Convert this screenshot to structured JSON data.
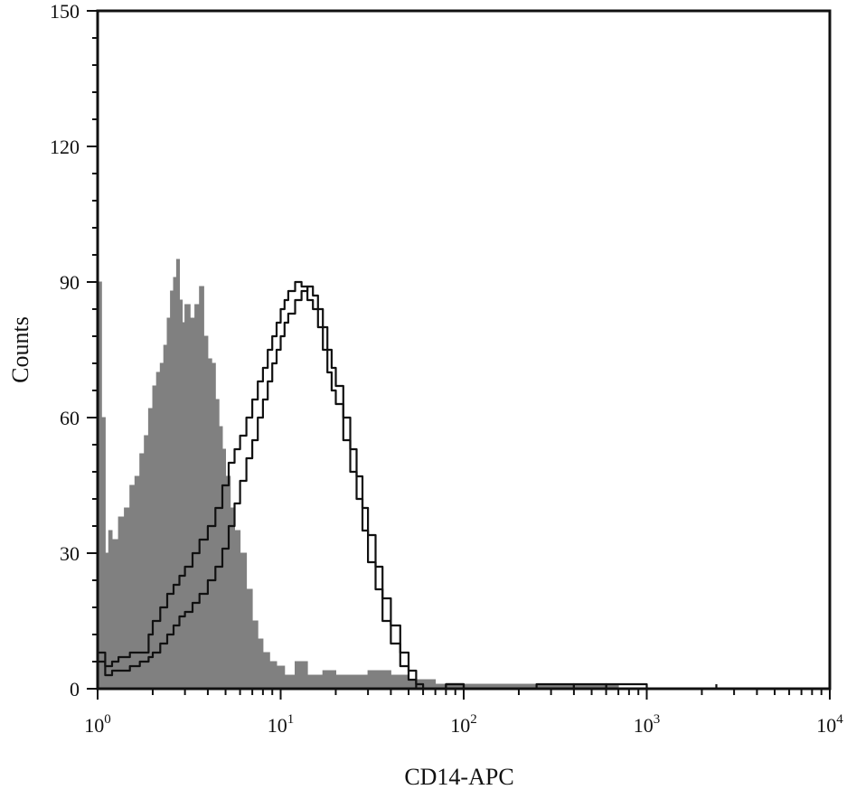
{
  "chart_data": {
    "type": "area",
    "title": "",
    "xlabel": "CD14-APC",
    "ylabel": "Counts",
    "x_scale": "log",
    "xlim": [
      1,
      10000
    ],
    "ylim": [
      0,
      150
    ],
    "x_ticks": [
      {
        "value": 1,
        "base": "10",
        "exp": "0"
      },
      {
        "value": 10,
        "base": "10",
        "exp": "1"
      },
      {
        "value": 100,
        "base": "10",
        "exp": "2"
      },
      {
        "value": 1000,
        "base": "10",
        "exp": "3"
      },
      {
        "value": 10000,
        "base": "10",
        "exp": "4"
      }
    ],
    "y_ticks": [
      0,
      30,
      60,
      90,
      120,
      150
    ],
    "grid": false,
    "legend": "none",
    "series": [
      {
        "style": "filled",
        "color": "#808080",
        "x": [
          1.0,
          1.05,
          1.1,
          1.15,
          1.2,
          1.3,
          1.4,
          1.5,
          1.6,
          1.7,
          1.8,
          1.9,
          2.0,
          2.1,
          2.2,
          2.3,
          2.4,
          2.5,
          2.6,
          2.7,
          2.8,
          2.9,
          3.0,
          3.2,
          3.4,
          3.6,
          3.8,
          4.0,
          4.2,
          4.4,
          4.6,
          4.8,
          5.0,
          5.3,
          5.6,
          6.0,
          6.5,
          7.0,
          7.5,
          8.0,
          8.7,
          9.5,
          10.5,
          12,
          14,
          17,
          20,
          25,
          30,
          40,
          50,
          60,
          70,
          80,
          100,
          130,
          170,
          250,
          400,
          700,
          1000
        ],
        "y": [
          90,
          60,
          30,
          35,
          33,
          38,
          40,
          45,
          47,
          52,
          56,
          62,
          67,
          70,
          72,
          76,
          82,
          88,
          91,
          95,
          86,
          81,
          85,
          82,
          85,
          89,
          78,
          73,
          72,
          64,
          58,
          53,
          47,
          40,
          35,
          30,
          22,
          15,
          11,
          8,
          6,
          5,
          3,
          6,
          3,
          4,
          3,
          3,
          4,
          3,
          2,
          2,
          1,
          1,
          1,
          1,
          1,
          1,
          1,
          0,
          0
        ]
      },
      {
        "style": "outline",
        "color": "#111111",
        "x": [
          1.0,
          1.1,
          1.2,
          1.3,
          1.5,
          1.7,
          1.9,
          2.0,
          2.2,
          2.4,
          2.6,
          2.8,
          3.0,
          3.3,
          3.6,
          4.0,
          4.4,
          4.8,
          5.2,
          5.6,
          6.0,
          6.5,
          7.0,
          7.5,
          8.0,
          8.5,
          9.0,
          9.5,
          10.0,
          10.5,
          11.0,
          12.0,
          13.0,
          14.0,
          15.0,
          16.0,
          17.0,
          18.0,
          19.0,
          20.0,
          22.0,
          24.0,
          26.0,
          28.0,
          30.0,
          33.0,
          36.0,
          40.0,
          45.0,
          50.0,
          55.0,
          60.0,
          70.0,
          80.0,
          100.0,
          150.0,
          250.0,
          400.0,
          600.0,
          1000.0,
          2400.0
        ],
        "y": [
          8,
          5,
          6,
          7,
          8,
          8,
          12,
          15,
          18,
          21,
          23,
          25,
          27,
          30,
          33,
          36,
          40,
          45,
          50,
          53,
          56,
          60,
          64,
          68,
          71,
          75,
          78,
          81,
          84,
          86,
          88,
          90,
          89,
          86,
          84,
          80,
          75,
          70,
          66,
          63,
          55,
          48,
          42,
          35,
          28,
          22,
          15,
          10,
          5,
          2,
          0,
          0,
          0,
          1,
          0,
          0,
          1,
          0,
          1,
          0,
          1
        ]
      },
      {
        "style": "outline",
        "color": "#111111",
        "x": [
          1.0,
          1.1,
          1.2,
          1.3,
          1.5,
          1.7,
          1.9,
          2.0,
          2.2,
          2.4,
          2.6,
          2.8,
          3.0,
          3.3,
          3.6,
          4.0,
          4.4,
          4.8,
          5.2,
          5.6,
          6.0,
          6.5,
          7.0,
          7.5,
          8.0,
          8.5,
          9.0,
          9.5,
          10.0,
          10.5,
          11.0,
          12.0,
          13.0,
          14.0,
          15.0,
          16.0,
          17.0,
          18.0,
          19.0,
          20.0,
          22.0,
          24.0,
          26.0,
          28.0,
          30.0,
          33.0,
          36.0,
          40.0,
          45.0,
          50.0,
          55.0,
          60.0,
          70.0,
          80.0,
          100.0,
          150.0,
          250.0,
          400.0,
          600.0,
          1000.0,
          2400.0
        ],
        "y": [
          6,
          3,
          4,
          4,
          5,
          6,
          7,
          8,
          10,
          12,
          14,
          16,
          17,
          19,
          21,
          24,
          27,
          31,
          36,
          41,
          46,
          51,
          55,
          60,
          64,
          68,
          72,
          75,
          78,
          81,
          83,
          86,
          88,
          89,
          87,
          84,
          80,
          75,
          71,
          67,
          60,
          53,
          47,
          40,
          34,
          27,
          20,
          14,
          8,
          4,
          1,
          0,
          0,
          1,
          0,
          0,
          0,
          1,
          0,
          0,
          0
        ]
      }
    ]
  }
}
